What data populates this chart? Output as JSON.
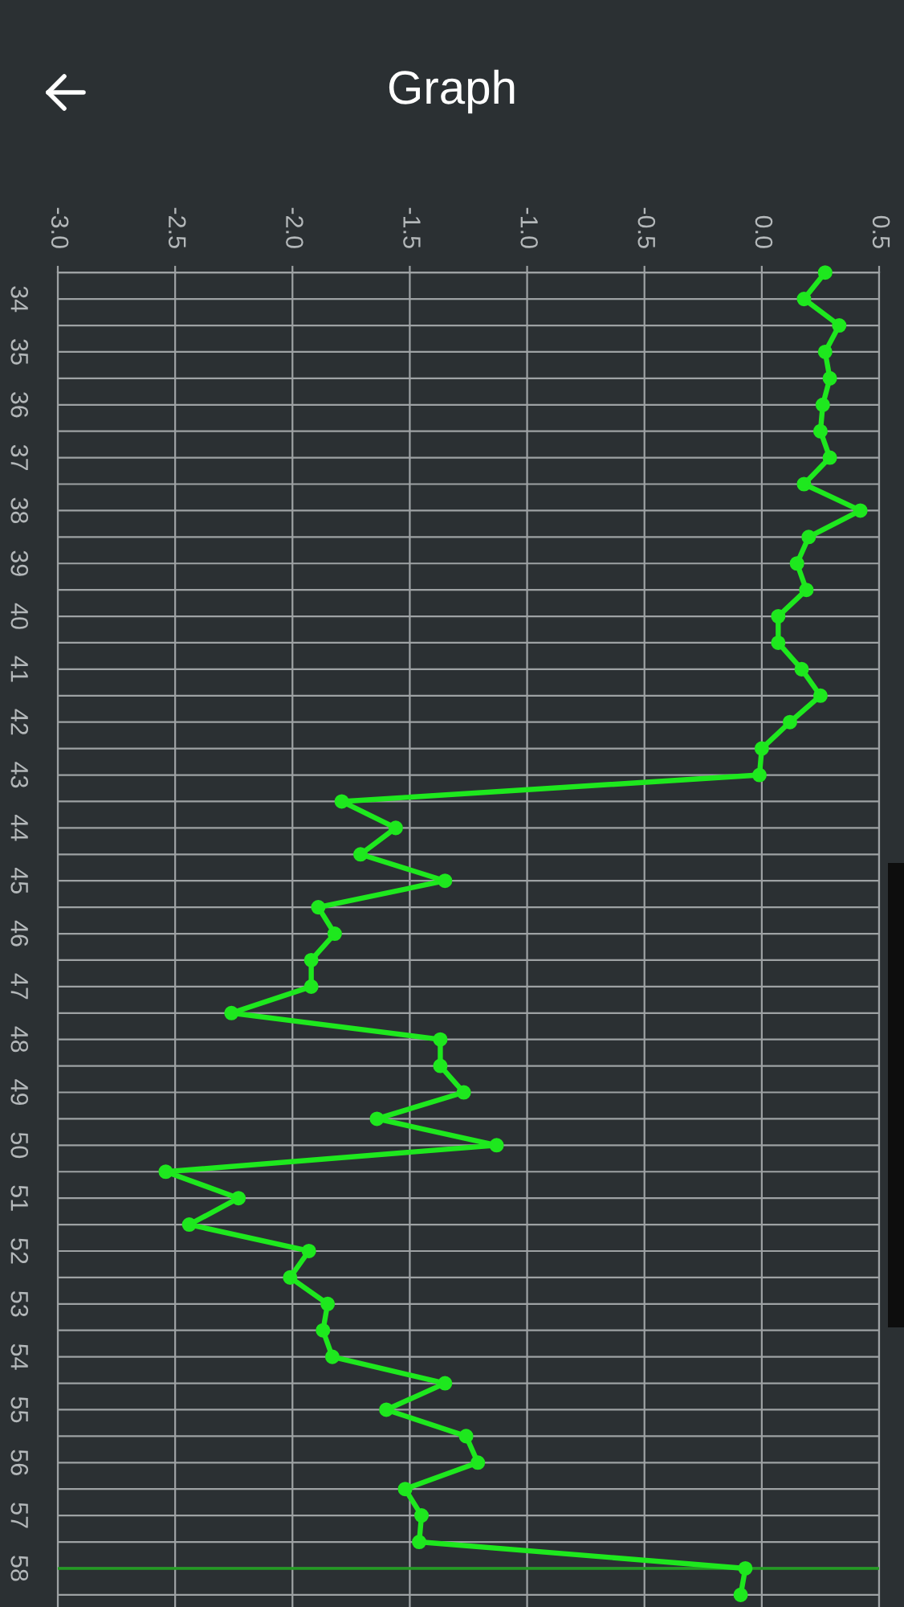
{
  "chart_data": {
    "type": "line",
    "title": "Graph",
    "orientation": "horizontal",
    "color": "#1ee81e",
    "marker": "circle",
    "line_style": "solid",
    "grid": true,
    "x": [
      33.5,
      34,
      34.5,
      35,
      35.5,
      36,
      36.5,
      37,
      37.5,
      38,
      38.5,
      39,
      39.5,
      40,
      40.5,
      41,
      41.5,
      42,
      42.5,
      43,
      43.5,
      44,
      44.5,
      45,
      45.5,
      46,
      46.5,
      47,
      47.5,
      48,
      48.5,
      49,
      49.5,
      50,
      50.5,
      51,
      51.5,
      52,
      52.5,
      53,
      53.5,
      54,
      54.5,
      55,
      55.5,
      56,
      56.5,
      57,
      57.5,
      58,
      58.5
    ],
    "values": [
      0.27,
      0.18,
      0.33,
      0.27,
      0.29,
      0.26,
      0.25,
      0.29,
      0.18,
      0.42,
      0.2,
      0.15,
      0.19,
      0.07,
      0.07,
      0.17,
      0.25,
      0.12,
      0.0,
      -0.01,
      -1.79,
      -1.56,
      -1.71,
      -1.35,
      -1.89,
      -1.82,
      -1.92,
      -1.92,
      -2.26,
      -1.37,
      -1.37,
      -1.27,
      -1.64,
      -1.13,
      -2.54,
      -2.23,
      -2.44,
      -1.93,
      -2.01,
      -1.85,
      -1.87,
      -1.83,
      -1.35,
      -1.6,
      -1.26,
      -1.21,
      -1.52,
      -1.45,
      -1.46,
      -0.07,
      -0.09
    ],
    "xlim": [
      -3.0,
      0.5
    ],
    "xticks": [
      {
        "value": -3.0,
        "label": "-3.0"
      },
      {
        "value": -2.5,
        "label": "-2.5"
      },
      {
        "value": -2.0,
        "label": "-2.0"
      },
      {
        "value": -1.5,
        "label": "-1.5"
      },
      {
        "value": -1.0,
        "label": "-1.0"
      },
      {
        "value": -0.5,
        "label": "-0.5"
      },
      {
        "value": 0.0,
        "label": "0.0"
      },
      {
        "value": 0.5,
        "label": "0.5"
      }
    ],
    "ylim": [
      58.73,
      33.5
    ],
    "yticks": [
      {
        "value": 33.5,
        "label": null
      },
      34,
      {
        "value": 34.5,
        "label": null
      },
      35,
      {
        "value": 35.5,
        "label": null
      },
      36,
      {
        "value": 36.5,
        "label": null
      },
      37,
      {
        "value": 37.5,
        "label": null
      },
      38,
      {
        "value": 38.5,
        "label": null
      },
      39,
      {
        "value": 39.5,
        "label": null
      },
      40,
      {
        "value": 40.5,
        "label": null
      },
      41,
      {
        "value": 41.5,
        "label": null
      },
      42,
      {
        "value": 42.5,
        "label": null
      },
      43,
      {
        "value": 43.5,
        "label": null
      },
      44,
      {
        "value": 44.5,
        "label": null
      },
      45,
      {
        "value": 45.5,
        "label": null
      },
      46,
      {
        "value": 46.5,
        "label": null
      },
      47,
      {
        "value": 47.5,
        "label": null
      },
      48,
      {
        "value": 48.5,
        "label": null
      },
      49,
      {
        "value": 49.5,
        "label": null
      },
      50,
      {
        "value": 50.5,
        "label": null
      },
      51,
      {
        "value": 51.5,
        "label": null
      },
      52,
      {
        "value": 52.5,
        "label": null
      },
      53,
      {
        "value": 53.5,
        "label": null
      },
      54,
      {
        "value": 54.5,
        "label": null
      },
      55,
      {
        "value": 55.5,
        "label": null
      },
      56,
      {
        "value": 56.5,
        "label": null
      },
      57,
      {
        "value": 57.5,
        "label": null
      },
      58,
      {
        "value": 58.5,
        "label": null
      }
    ],
    "ref_lines": [
      {
        "axis": "y",
        "value": 58,
        "color": "#239b23"
      }
    ]
  }
}
